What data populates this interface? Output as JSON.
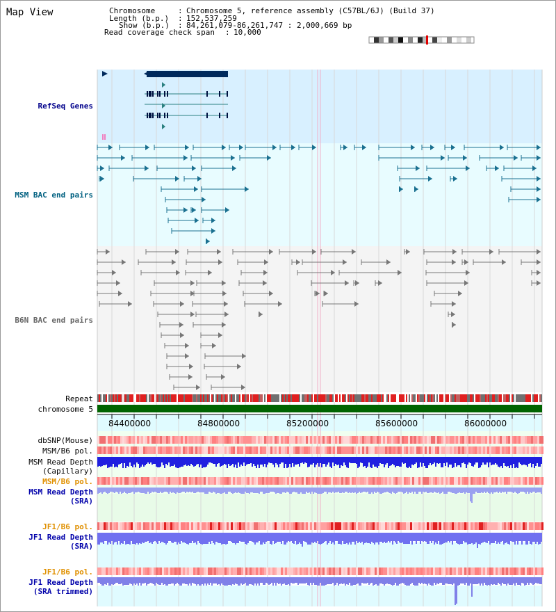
{
  "title": "Map View",
  "info": {
    "chromosome_key": "Chromosome",
    "chromosome_val": "Chromosome 5, reference assembly (C57BL/6J) (Build 37)",
    "length_key": "Length (b.p.)",
    "length_val": "152,537,259",
    "show_key": "Show (b.p.)",
    "show_val": "84,261,079-86,261,747 : 2,000,669 bp",
    "span_key": "Read coverage check span",
    "span_val": "10,000"
  },
  "tracks": {
    "refseq": "RefSeq Genes",
    "msm_bac": "MSM BAC end pairs",
    "b6n_bac": "B6N BAC end pairs",
    "repeat": "Repeat",
    "chromosome": "chromosome 5",
    "dbsnp": "dbSNP(Mouse)",
    "msm_b6_pol_1": "MSM/B6 pol.",
    "msm_read_depth_cap_1": "MSM Read Depth",
    "msm_read_depth_cap_2": "(Capillary)",
    "msm_b6_pol_2": "MSM/B6 pol.",
    "msm_read_depth_sra_1": "MSM Read Depth",
    "msm_read_depth_sra_2": "(SRA)",
    "jf1_b6_pol_1": "JF1/B6 pol.",
    "jf1_read_depth_sra_1": "JF1 Read Depth",
    "jf1_read_depth_sra_2": "(SRA)",
    "jf1_b6_pol_2": "JF1/B6 pol.",
    "jf1_read_depth_trim_1": "JF1 Read Depth",
    "jf1_read_depth_trim_2": "(SRA trimmed)"
  },
  "axis_ticks": [
    "84400000",
    "84800000",
    "85200000",
    "85600000",
    "86000000"
  ],
  "colors": {
    "refseq_label": "#00008b",
    "msm_bac_label": "#006080",
    "b6n_bac_label": "#666666",
    "orange_label": "#e09000",
    "blue_label": "#0000aa",
    "chromosome_bar": "#006400",
    "refseq_bg": "#d8f0ff",
    "bac_bg": "#e8fcff",
    "b6n_bg": "#f4f4f4",
    "depth_bg": "#e8fbe8",
    "depth_blue": "#7070f0"
  }
}
